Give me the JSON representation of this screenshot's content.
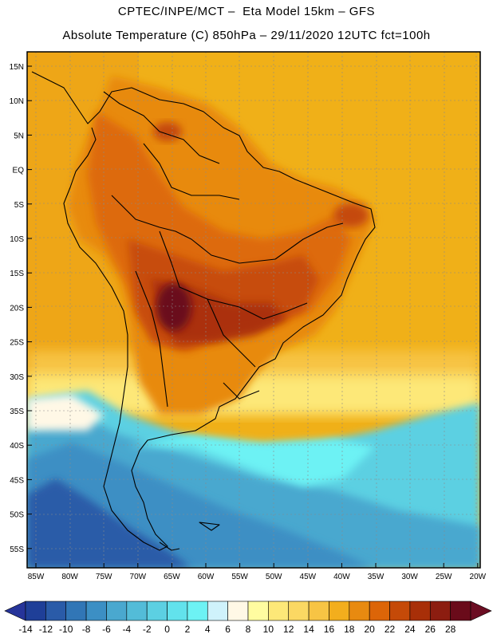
{
  "title_line1": "CPTEC/INPE/MCT –  Eta Model 15km – GFS",
  "title_line2": "Absolute Temperature (C) 850hPa – 29/11/2020 12UTC fct=100h",
  "lat_labels": [
    "15N",
    "10N",
    "5N",
    "EQ",
    "5S",
    "10S",
    "15S",
    "20S",
    "25S",
    "30S",
    "35S",
    "40S",
    "45S",
    "50S",
    "55S"
  ],
  "lon_labels": [
    "85W",
    "80W",
    "75W",
    "70W",
    "65W",
    "60W",
    "55W",
    "50W",
    "45W",
    "40W",
    "35W",
    "30W",
    "25W",
    "20W"
  ],
  "colorbar": {
    "labels": [
      "-14",
      "-12",
      "-10",
      "-8",
      "-6",
      "-4",
      "-2",
      "0",
      "2",
      "4",
      "6",
      "8",
      "10",
      "12",
      "14",
      "16",
      "18",
      "20",
      "22",
      "24",
      "26",
      "28"
    ],
    "colors": [
      "#1f3f98",
      "#2a5ba8",
      "#3176b6",
      "#3c8fc4",
      "#4aa8cf",
      "#53bcd8",
      "#5cd0e2",
      "#62e2ec",
      "#6df2f4",
      "#cff2fb",
      "#fff8e6",
      "#fffca0",
      "#fde878",
      "#fbd863",
      "#f7c444",
      "#f3ae1d",
      "#e88a10",
      "#dc6508",
      "#c54a08",
      "#a82f08",
      "#8c1d10",
      "#6a0b1a"
    ],
    "left_arrow_color": "#26349a",
    "right_arrow_color": "#6b0d22"
  }
}
